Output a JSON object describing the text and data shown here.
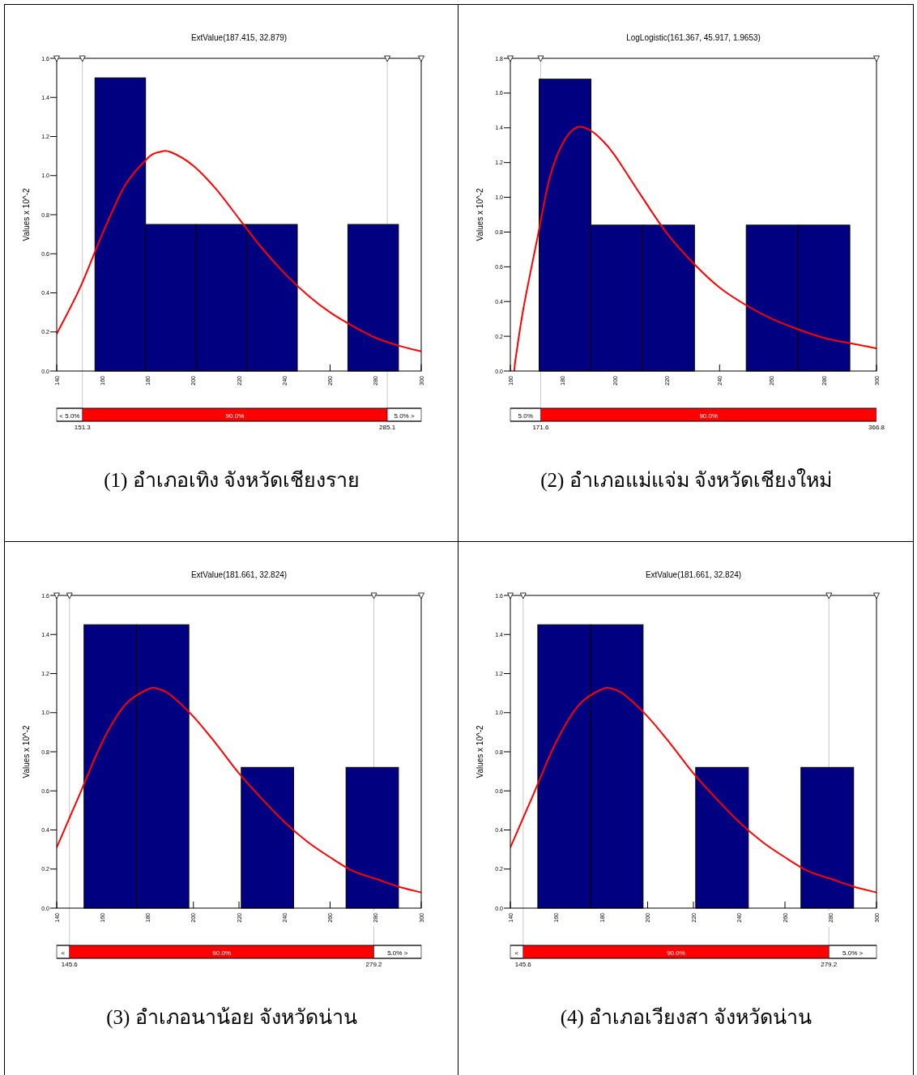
{
  "chart_data": [
    {
      "type": "histogram",
      "title": "ExtValue(187.415, 32.879)",
      "ylabel": "Values x 10^-2",
      "xlim": [
        140,
        300
      ],
      "ylim": [
        0,
        1.6
      ],
      "xticks": [
        140,
        160,
        180,
        200,
        220,
        240,
        260,
        280,
        300
      ],
      "yticks": [
        {
          "value": 0,
          "label": "0.0"
        },
        {
          "value": 0.2,
          "label": "0.2"
        },
        {
          "value": 0.4,
          "label": "0.4"
        },
        {
          "value": 0.6,
          "label": "0.6"
        },
        {
          "value": 0.8,
          "label": "0.8"
        },
        {
          "value": 1.0,
          "label": "1.0"
        },
        {
          "value": 1.2,
          "label": "1.2"
        },
        {
          "value": 1.4,
          "label": "1.4"
        },
        {
          "value": 1.6,
          "label": "1.6"
        }
      ],
      "series": [
        {
          "type": "histogram",
          "color": "#000080",
          "bins": [
            156.8,
            179,
            201.2,
            223.4,
            245.6,
            267.8,
            290
          ],
          "values": [
            1.5,
            0.75,
            0.75,
            0.75,
            0,
            0.75
          ]
        },
        {
          "type": "line",
          "color": "#ff0000",
          "x": [
            140,
            150,
            160,
            170,
            180,
            185,
            190,
            200,
            210,
            220,
            230,
            240,
            250,
            260,
            270,
            280,
            290,
            300
          ],
          "values": [
            0.19,
            0.42,
            0.7,
            0.95,
            1.09,
            1.12,
            1.12,
            1.05,
            0.93,
            0.78,
            0.63,
            0.5,
            0.39,
            0.3,
            0.23,
            0.17,
            0.13,
            0.1
          ]
        }
      ],
      "ref_lines": [
        {
          "axis": "x",
          "value": 151.3,
          "label": "151.3",
          "color": "#c8c8c8"
        },
        {
          "axis": "x",
          "value": 285.1,
          "label": "285.1",
          "color": "#c8c8c8"
        }
      ],
      "annotations": [
        "(1) อำเภอเทิง จังหวัดเชียงราย",
        "<  5.0%",
        "90.0%",
        "5.0%    >"
      ]
    },
    {
      "type": "histogram",
      "title": "LogLogistic(161.367, 45.917, 1.9653)",
      "ylabel": "Values x 10^-2",
      "xlim": [
        160,
        300
      ],
      "ylim": [
        0,
        1.8
      ],
      "xticks": [
        160,
        180,
        200,
        220,
        240,
        260,
        280,
        300
      ],
      "yticks": [
        {
          "value": 0,
          "label": "0.0"
        },
        {
          "value": 0.2,
          "label": "0.2"
        },
        {
          "value": 0.4,
          "label": "0.4"
        },
        {
          "value": 0.6,
          "label": "0.6"
        },
        {
          "value": 0.8,
          "label": "0.8"
        },
        {
          "value": 1.0,
          "label": "1.0"
        },
        {
          "value": 1.2,
          "label": "1.2"
        },
        {
          "value": 1.4,
          "label": "1.4"
        },
        {
          "value": 1.6,
          "label": "1.6"
        },
        {
          "value": 1.8,
          "label": "1.8"
        }
      ],
      "series": [
        {
          "type": "histogram",
          "color": "#000080",
          "bins": [
            171,
            190.8,
            210.6,
            230.4,
            250.2,
            270,
            289.8
          ],
          "values": [
            1.68,
            0.84,
            0.84,
            0,
            0.84,
            0.84
          ]
        },
        {
          "type": "line",
          "color": "#ff0000",
          "x": [
            160,
            161.4,
            162,
            165,
            170,
            175,
            180,
            185,
            190,
            195,
            200,
            210,
            220,
            230,
            240,
            250,
            260,
            270,
            280,
            290,
            300
          ],
          "values": [
            0,
            0,
            0.07,
            0.36,
            0.74,
            1.11,
            1.31,
            1.4,
            1.39,
            1.33,
            1.24,
            1.01,
            0.79,
            0.62,
            0.48,
            0.38,
            0.3,
            0.24,
            0.19,
            0.16,
            0.13
          ]
        }
      ],
      "ref_lines": [
        {
          "axis": "x",
          "value": 171.6,
          "label": "171.6",
          "color": "#c8c8c8"
        }
      ],
      "annotations": [
        "(2) อำเภอแม่แจ่ม จังหวัดเชียงใหม่",
        "5.0%",
        "90.0%",
        "366.8"
      ]
    },
    {
      "type": "histogram",
      "title": "ExtValue(181.661, 32.824)",
      "ylabel": "Values x 10^-2",
      "xlim": [
        140,
        300
      ],
      "ylim": [
        0,
        1.6
      ],
      "xticks": [
        140,
        160,
        180,
        200,
        220,
        240,
        260,
        280,
        300
      ],
      "yticks": [
        {
          "value": 0,
          "label": "0.0"
        },
        {
          "value": 0.2,
          "label": "0.2"
        },
        {
          "value": 0.4,
          "label": "0.4"
        },
        {
          "value": 0.6,
          "label": "0.6"
        },
        {
          "value": 0.8,
          "label": "0.8"
        },
        {
          "value": 1.0,
          "label": "1.0"
        },
        {
          "value": 1.2,
          "label": "1.2"
        },
        {
          "value": 1.4,
          "label": "1.4"
        },
        {
          "value": 1.6,
          "label": "1.6"
        }
      ],
      "series": [
        {
          "type": "histogram",
          "color": "#000080",
          "bins": [
            152,
            175,
            198,
            221,
            244,
            267,
            290
          ],
          "values": [
            1.45,
            1.45,
            0,
            0.72,
            0,
            0.72
          ]
        },
        {
          "type": "line",
          "color": "#ff0000",
          "x": [
            140,
            150,
            160,
            170,
            180,
            185,
            190,
            200,
            210,
            220,
            230,
            240,
            250,
            260,
            270,
            280,
            290,
            300
          ],
          "values": [
            0.31,
            0.58,
            0.85,
            1.04,
            1.12,
            1.12,
            1.09,
            0.98,
            0.84,
            0.69,
            0.56,
            0.44,
            0.34,
            0.26,
            0.19,
            0.15,
            0.11,
            0.08
          ]
        }
      ],
      "ref_lines": [
        {
          "axis": "x",
          "value": 145.6,
          "label": "145.6",
          "color": "#c8c8c8"
        },
        {
          "axis": "x",
          "value": 279.2,
          "label": "279.2",
          "color": "#c8c8c8"
        }
      ],
      "annotations": [
        "(3) อำเภอนาน้อย  จังหวัดน่าน",
        "<",
        "90.0%",
        "5.0%    >"
      ]
    },
    {
      "type": "histogram",
      "title": "ExtValue(181.661, 32.824)",
      "ylabel": "Values x 10^-2",
      "xlim": [
        140,
        300
      ],
      "ylim": [
        0,
        1.6
      ],
      "xticks": [
        140,
        160,
        180,
        200,
        220,
        240,
        260,
        280,
        300
      ],
      "yticks": [
        {
          "value": 0,
          "label": "0.0"
        },
        {
          "value": 0.2,
          "label": "0.2"
        },
        {
          "value": 0.4,
          "label": "0.4"
        },
        {
          "value": 0.6,
          "label": "0.6"
        },
        {
          "value": 0.8,
          "label": "0.8"
        },
        {
          "value": 1.0,
          "label": "1.0"
        },
        {
          "value": 1.2,
          "label": "1.2"
        },
        {
          "value": 1.4,
          "label": "1.4"
        },
        {
          "value": 1.6,
          "label": "1.6"
        }
      ],
      "series": [
        {
          "type": "histogram",
          "color": "#000080",
          "bins": [
            152,
            175,
            198,
            221,
            244,
            267,
            290
          ],
          "values": [
            1.45,
            1.45,
            0,
            0.72,
            0,
            0.72
          ]
        },
        {
          "type": "line",
          "color": "#ff0000",
          "x": [
            140,
            150,
            160,
            170,
            180,
            185,
            190,
            200,
            210,
            220,
            230,
            240,
            250,
            260,
            270,
            280,
            290,
            300
          ],
          "values": [
            0.31,
            0.58,
            0.85,
            1.04,
            1.12,
            1.12,
            1.09,
            0.98,
            0.84,
            0.69,
            0.56,
            0.44,
            0.34,
            0.26,
            0.19,
            0.15,
            0.11,
            0.08
          ]
        }
      ],
      "ref_lines": [
        {
          "axis": "x",
          "value": 145.6,
          "label": "145.6",
          "color": "#c8c8c8"
        },
        {
          "axis": "x",
          "value": 279.2,
          "label": "279.2",
          "color": "#c8c8c8"
        }
      ],
      "annotations": [
        "(4) อำเภอเวียงสา จังหวัดน่าน",
        "<",
        "90.0%",
        "5.0%    >"
      ]
    }
  ]
}
